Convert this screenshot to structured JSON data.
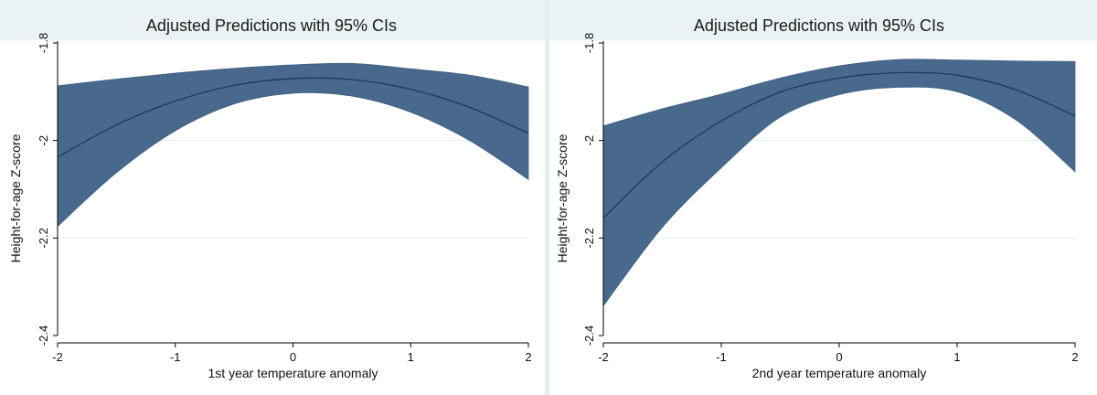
{
  "chart_data": [
    {
      "type": "area",
      "title": "Adjusted Predictions with 95% CIs",
      "xlabel": "1st year temperature anomaly",
      "ylabel": "Height-for-age Z-score",
      "xlim": [
        -2,
        2
      ],
      "ylim": [
        -2.4,
        -1.8
      ],
      "x_ticks": [
        "-2",
        "-1",
        "0",
        "1",
        "2"
      ],
      "y_ticks": [
        "-2.4",
        "-2.2",
        "-2",
        "-1.8"
      ],
      "grid": "horizontal",
      "band_color": "#48698c",
      "line_color": "#1b3a5a",
      "series": [
        {
          "x": [
            -2,
            -1.5,
            -1,
            -0.5,
            0,
            0.5,
            1,
            1.5,
            2
          ],
          "y": [
            -2.034,
            -1.968,
            -1.919,
            -1.887,
            -1.873,
            -1.875,
            -1.895,
            -1.932,
            -1.985
          ],
          "lower": [
            -2.176,
            -2.066,
            -1.98,
            -1.925,
            -1.903,
            -1.909,
            -1.942,
            -2.0,
            -2.08
          ],
          "upper": [
            -1.888,
            -1.874,
            -1.862,
            -1.852,
            -1.845,
            -1.842,
            -1.853,
            -1.866,
            -1.89
          ]
        }
      ]
    },
    {
      "type": "area",
      "title": "Adjusted Predictions with 95% CIs",
      "xlabel": "2nd year temperature anomaly",
      "ylabel": "Height-for-age Z-score",
      "xlim": [
        -2,
        2
      ],
      "ylim": [
        -2.4,
        -1.8
      ],
      "x_ticks": [
        "-2",
        "-1",
        "0",
        "1",
        "2"
      ],
      "y_ticks": [
        "-2.4",
        "-2.2",
        "-2",
        "-1.8"
      ],
      "grid": "horizontal",
      "band_color": "#48698c",
      "line_color": "#1b3a5a",
      "series": [
        {
          "x": [
            -2,
            -1.5,
            -1,
            -0.5,
            0,
            0.5,
            1,
            1.5,
            2
          ],
          "y": [
            -2.159,
            -2.044,
            -1.96,
            -1.901,
            -1.872,
            -1.861,
            -1.866,
            -1.896,
            -1.95
          ],
          "lower": [
            -2.339,
            -2.178,
            -2.056,
            -1.952,
            -1.906,
            -1.891,
            -1.9,
            -1.958,
            -2.064
          ],
          "upper": [
            -1.97,
            -1.935,
            -1.905,
            -1.872,
            -1.847,
            -1.834,
            -1.835,
            -1.837,
            -1.838
          ]
        }
      ]
    }
  ]
}
